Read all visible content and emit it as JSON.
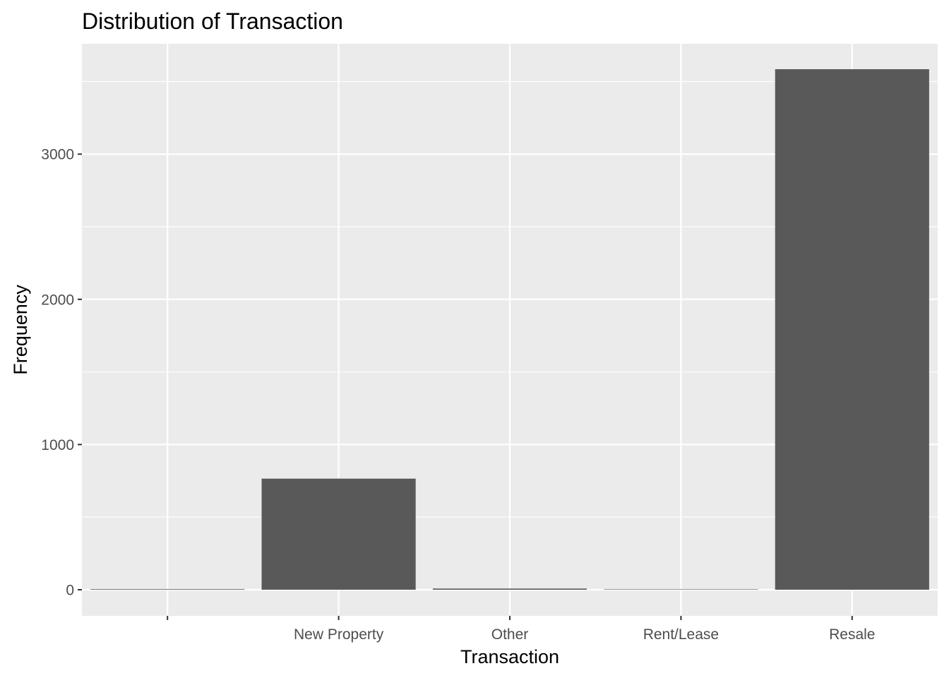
{
  "chart_data": {
    "type": "bar",
    "title": "Distribution of Transaction",
    "xlabel": "Transaction",
    "ylabel": "Frequency",
    "categories": [
      "",
      "New Property",
      "Other",
      "Rent/Lease",
      "Resale"
    ],
    "values": [
      4,
      765,
      8,
      3,
      3585
    ],
    "ylim": [
      -180,
      3760
    ],
    "yticks": [
      0,
      1000,
      2000,
      3000
    ],
    "ytick_labels": [
      "0",
      "1000",
      "2000",
      "3000"
    ],
    "grid": true,
    "colors": {
      "bar": "#595959",
      "panel": "#ebebeb",
      "grid": "#ffffff",
      "tick_text": "#4d4d4d",
      "tick_mark": "#333333"
    }
  }
}
